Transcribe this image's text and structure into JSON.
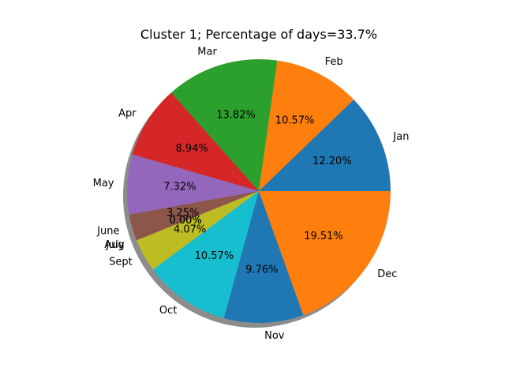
{
  "chart_data": {
    "type": "pie",
    "title": "Cluster 1; Percentage of days=33.7%",
    "shadow": true,
    "start_angle_deg": 0,
    "direction": "counterclockwise",
    "slices": [
      {
        "label": "Jan",
        "value": 12.2,
        "pct_label": "12.20%",
        "color": "#1f77b4"
      },
      {
        "label": "Feb",
        "value": 10.57,
        "pct_label": "10.57%",
        "color": "#ff7f0e"
      },
      {
        "label": "Mar",
        "value": 13.82,
        "pct_label": "13.82%",
        "color": "#2ca02c"
      },
      {
        "label": "Apr",
        "value": 8.94,
        "pct_label": "8.94%",
        "color": "#d62728"
      },
      {
        "label": "May",
        "value": 7.32,
        "pct_label": "7.32%",
        "color": "#9467bd"
      },
      {
        "label": "June",
        "value": 3.25,
        "pct_label": "3.25%",
        "color": "#8c564b"
      },
      {
        "label": "July",
        "value": 0.0,
        "pct_label": "0.00%",
        "color": "#e377c2"
      },
      {
        "label": "Aug",
        "value": 0.0,
        "pct_label": "0.00%",
        "color": "#7f7f7f"
      },
      {
        "label": "Sept",
        "value": 4.07,
        "pct_label": "4.07%",
        "color": "#bcbd22"
      },
      {
        "label": "Oct",
        "value": 10.57,
        "pct_label": "10.57%",
        "color": "#17becf"
      },
      {
        "label": "Nov",
        "value": 9.76,
        "pct_label": "9.76%",
        "color": "#1f77b4"
      },
      {
        "label": "Dec",
        "value": 19.51,
        "pct_label": "19.51%",
        "color": "#ff7f0e"
      }
    ]
  }
}
